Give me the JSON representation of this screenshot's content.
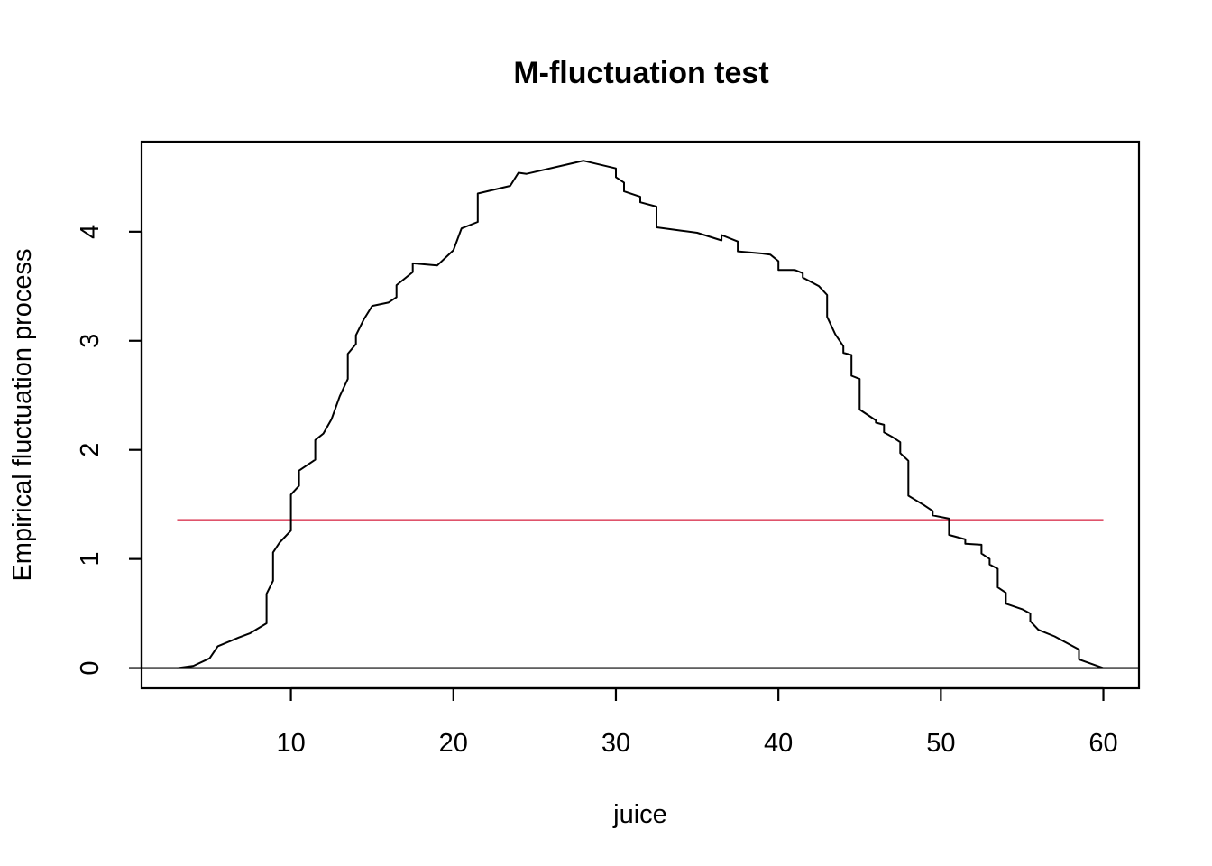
{
  "chart_data": {
    "type": "line",
    "title": "M-fluctuation test",
    "xlabel": "juice",
    "ylabel": "Empirical fluctuation process",
    "xlim": [
      0.81,
      62.19
    ],
    "ylim": [
      -0.1856,
      4.8256
    ],
    "x_ticks": [
      10,
      20,
      30,
      40,
      50,
      60
    ],
    "y_ticks": [
      0,
      1,
      2,
      3,
      4
    ],
    "grid": false,
    "legend": "none",
    "colors": {
      "process": "#000000",
      "boundary": "#DF536B",
      "zero_line": "#000000",
      "frame": "#000000"
    },
    "series": [
      {
        "values": [
          [
            3.0,
            0.0
          ],
          [
            4.0,
            0.02
          ],
          [
            5.0,
            0.09
          ],
          [
            5.5,
            0.2
          ],
          [
            6.0,
            0.23
          ],
          [
            6.8,
            0.28
          ],
          [
            7.5,
            0.32
          ],
          [
            8.5,
            0.41
          ],
          [
            8.5,
            0.68
          ],
          [
            8.9,
            0.8
          ],
          [
            8.9,
            1.06
          ],
          [
            9.3,
            1.15
          ],
          [
            10.0,
            1.26
          ],
          [
            10.0,
            1.59
          ],
          [
            10.5,
            1.67
          ],
          [
            10.5,
            1.81
          ],
          [
            11.5,
            1.91
          ],
          [
            11.5,
            2.09
          ],
          [
            12.0,
            2.15
          ],
          [
            12.5,
            2.28
          ],
          [
            13.0,
            2.49
          ],
          [
            13.5,
            2.65
          ],
          [
            13.5,
            2.88
          ],
          [
            14.0,
            2.97
          ],
          [
            14.0,
            3.05
          ],
          [
            14.5,
            3.2
          ],
          [
            15.0,
            3.32
          ],
          [
            16.0,
            3.35
          ],
          [
            16.5,
            3.4
          ],
          [
            16.5,
            3.51
          ],
          [
            17.5,
            3.63
          ],
          [
            17.5,
            3.71
          ],
          [
            19.0,
            3.69
          ],
          [
            20.0,
            3.83
          ],
          [
            20.5,
            4.03
          ],
          [
            21.5,
            4.09
          ],
          [
            21.5,
            4.35
          ],
          [
            23.5,
            4.42
          ],
          [
            24.0,
            4.54
          ],
          [
            24.5,
            4.53
          ],
          [
            28.0,
            4.65
          ],
          [
            30.0,
            4.58
          ],
          [
            30.0,
            4.5
          ],
          [
            30.5,
            4.45
          ],
          [
            30.5,
            4.37
          ],
          [
            31.5,
            4.32
          ],
          [
            31.5,
            4.27
          ],
          [
            32.5,
            4.23
          ],
          [
            32.5,
            4.04
          ],
          [
            34.0,
            4.01
          ],
          [
            35.0,
            3.99
          ],
          [
            36.5,
            3.92
          ],
          [
            36.5,
            3.97
          ],
          [
            37.5,
            3.91
          ],
          [
            37.5,
            3.82
          ],
          [
            39.0,
            3.8
          ],
          [
            39.5,
            3.79
          ],
          [
            40.0,
            3.73
          ],
          [
            40.0,
            3.65
          ],
          [
            41.0,
            3.65
          ],
          [
            41.5,
            3.62
          ],
          [
            41.5,
            3.58
          ],
          [
            42.5,
            3.5
          ],
          [
            43.0,
            3.42
          ],
          [
            43.0,
            3.22
          ],
          [
            43.5,
            3.06
          ],
          [
            44.0,
            2.95
          ],
          [
            44.0,
            2.89
          ],
          [
            44.5,
            2.87
          ],
          [
            44.5,
            2.68
          ],
          [
            45.0,
            2.65
          ],
          [
            45.0,
            2.37
          ],
          [
            46.0,
            2.27
          ],
          [
            46.0,
            2.25
          ],
          [
            46.5,
            2.23
          ],
          [
            46.5,
            2.16
          ],
          [
            47.0,
            2.12
          ],
          [
            47.5,
            2.07
          ],
          [
            47.5,
            1.97
          ],
          [
            48.0,
            1.9
          ],
          [
            48.0,
            1.58
          ],
          [
            49.0,
            1.49
          ],
          [
            49.5,
            1.44
          ],
          [
            49.5,
            1.4
          ],
          [
            50.5,
            1.37
          ],
          [
            50.5,
            1.22
          ],
          [
            51.5,
            1.18
          ],
          [
            51.5,
            1.14
          ],
          [
            52.5,
            1.13
          ],
          [
            52.5,
            1.05
          ],
          [
            53.0,
            1.0
          ],
          [
            53.0,
            0.95
          ],
          [
            53.5,
            0.91
          ],
          [
            53.5,
            0.74
          ],
          [
            54.0,
            0.69
          ],
          [
            54.0,
            0.59
          ],
          [
            55.0,
            0.54
          ],
          [
            55.5,
            0.5
          ],
          [
            55.5,
            0.43
          ],
          [
            56.0,
            0.35
          ],
          [
            57.0,
            0.29
          ],
          [
            58.5,
            0.17
          ],
          [
            58.5,
            0.08
          ],
          [
            60.0,
            0.0
          ]
        ]
      }
    ],
    "boundary": {
      "y": 1.358,
      "x_from": 3.0,
      "x_to": 60.0
    },
    "reference_line": {
      "y": 0
    }
  }
}
